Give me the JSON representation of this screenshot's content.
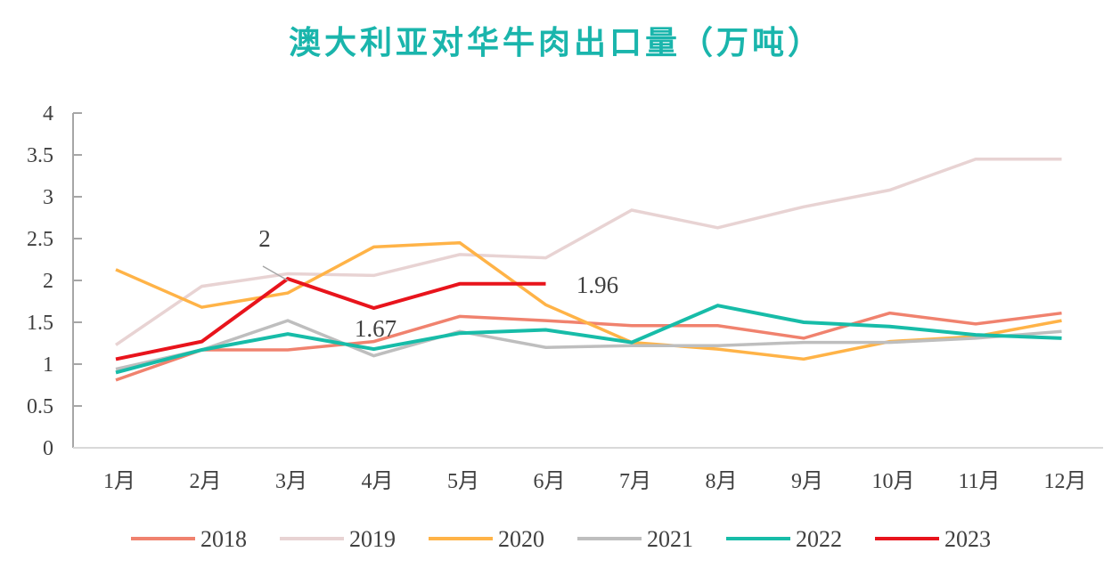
{
  "chart_data": {
    "type": "line",
    "title": "澳大利亚对华牛肉出口量（万吨）",
    "title_color": "#1AB5AC",
    "xlabel": "",
    "ylabel": "",
    "ylim": [
      0,
      4
    ],
    "yticks": [
      0,
      0.5,
      1,
      1.5,
      2,
      2.5,
      3,
      3.5,
      4
    ],
    "ytick_labels": [
      "0",
      "0.5",
      "1",
      "1.5",
      "2",
      "2.5",
      "3",
      "3.5",
      "4"
    ],
    "categories": [
      "1月",
      "2月",
      "3月",
      "4月",
      "5月",
      "6月",
      "7月",
      "8月",
      "9月",
      "10月",
      "11月",
      "12月"
    ],
    "grid": false,
    "legend_position": "bottom",
    "series": [
      {
        "name": "2018",
        "color": "#F0826E",
        "values": [
          0.81,
          1.17,
          1.17,
          1.27,
          1.57,
          1.52,
          1.46,
          1.46,
          1.31,
          1.61,
          1.48,
          1.61
        ]
      },
      {
        "name": "2019",
        "color": "#E8D3D3",
        "values": [
          1.23,
          1.93,
          2.08,
          2.06,
          2.31,
          2.27,
          2.84,
          2.63,
          2.88,
          3.08,
          3.45,
          3.45
        ]
      },
      {
        "name": "2020",
        "color": "#FFB347",
        "values": [
          2.13,
          1.68,
          1.85,
          2.4,
          2.45,
          1.71,
          1.26,
          1.18,
          1.06,
          1.27,
          1.33,
          1.52
        ]
      },
      {
        "name": "2021",
        "color": "#BEBEBE",
        "values": [
          0.94,
          1.17,
          1.52,
          1.1,
          1.39,
          1.2,
          1.22,
          1.22,
          1.26,
          1.26,
          1.31,
          1.39
        ]
      },
      {
        "name": "2022",
        "color": "#17BCA8",
        "values": [
          0.9,
          1.17,
          1.36,
          1.18,
          1.37,
          1.41,
          1.26,
          1.7,
          1.5,
          1.45,
          1.35,
          1.31
        ]
      },
      {
        "name": "2023",
        "color": "#E8141C",
        "values": [
          1.06,
          1.27,
          2.02,
          1.67,
          1.96,
          1.96,
          null,
          null,
          null,
          null,
          null,
          null
        ]
      }
    ],
    "annotations": [
      {
        "text": "2",
        "series": "2023",
        "category": "3月",
        "value": 2
      },
      {
        "text": "1.67",
        "series": "2023",
        "category": "4月",
        "value": 1.67
      },
      {
        "text": "1.96",
        "series": "2023",
        "category": "6月",
        "value": 1.96
      }
    ]
  }
}
